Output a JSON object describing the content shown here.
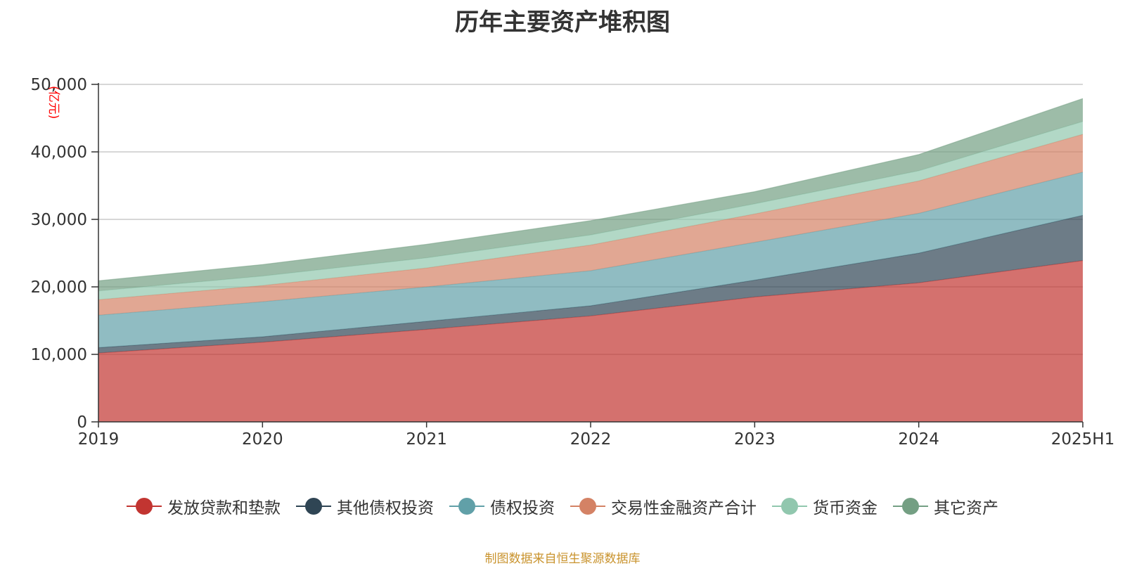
{
  "title": "历年主要资产堆积图",
  "source_note": "制图数据来自恒生聚源数据库",
  "chart_data": {
    "type": "area",
    "stacked": true,
    "unit_label": "(亿元)",
    "categories": [
      "2019",
      "2020",
      "2021",
      "2022",
      "2023",
      "2024",
      "2025H1"
    ],
    "ylim": [
      0,
      50000
    ],
    "yticks": [
      0,
      10000,
      20000,
      30000,
      40000,
      50000
    ],
    "ytick_labels": [
      "0",
      "10,000",
      "20,000",
      "30,000",
      "40,000",
      "50,000"
    ],
    "grid": true,
    "legend_position": "bottom",
    "series": [
      {
        "name": "发放贷款和垫款",
        "color": "#c23531",
        "values": [
          10200,
          11800,
          13700,
          15700,
          18500,
          20600,
          23900
        ]
      },
      {
        "name": "其他债权投资",
        "color": "#2f4554",
        "values": [
          800,
          800,
          1200,
          1500,
          2500,
          4400,
          6700
        ]
      },
      {
        "name": "债权投资",
        "color": "#61a0a8",
        "values": [
          4800,
          5200,
          5100,
          5200,
          5600,
          5900,
          6400
        ]
      },
      {
        "name": "交易性金融资产合计",
        "color": "#d48265",
        "values": [
          2300,
          2400,
          2800,
          3800,
          4200,
          4800,
          5600
        ]
      },
      {
        "name": "货币资金",
        "color": "#91c7ae",
        "values": [
          1300,
          1400,
          1500,
          1500,
          1500,
          1500,
          1900
        ]
      },
      {
        "name": "其它资产",
        "color": "#749f83",
        "values": [
          1500,
          1700,
          2000,
          2100,
          1800,
          2400,
          3400
        ]
      }
    ]
  }
}
